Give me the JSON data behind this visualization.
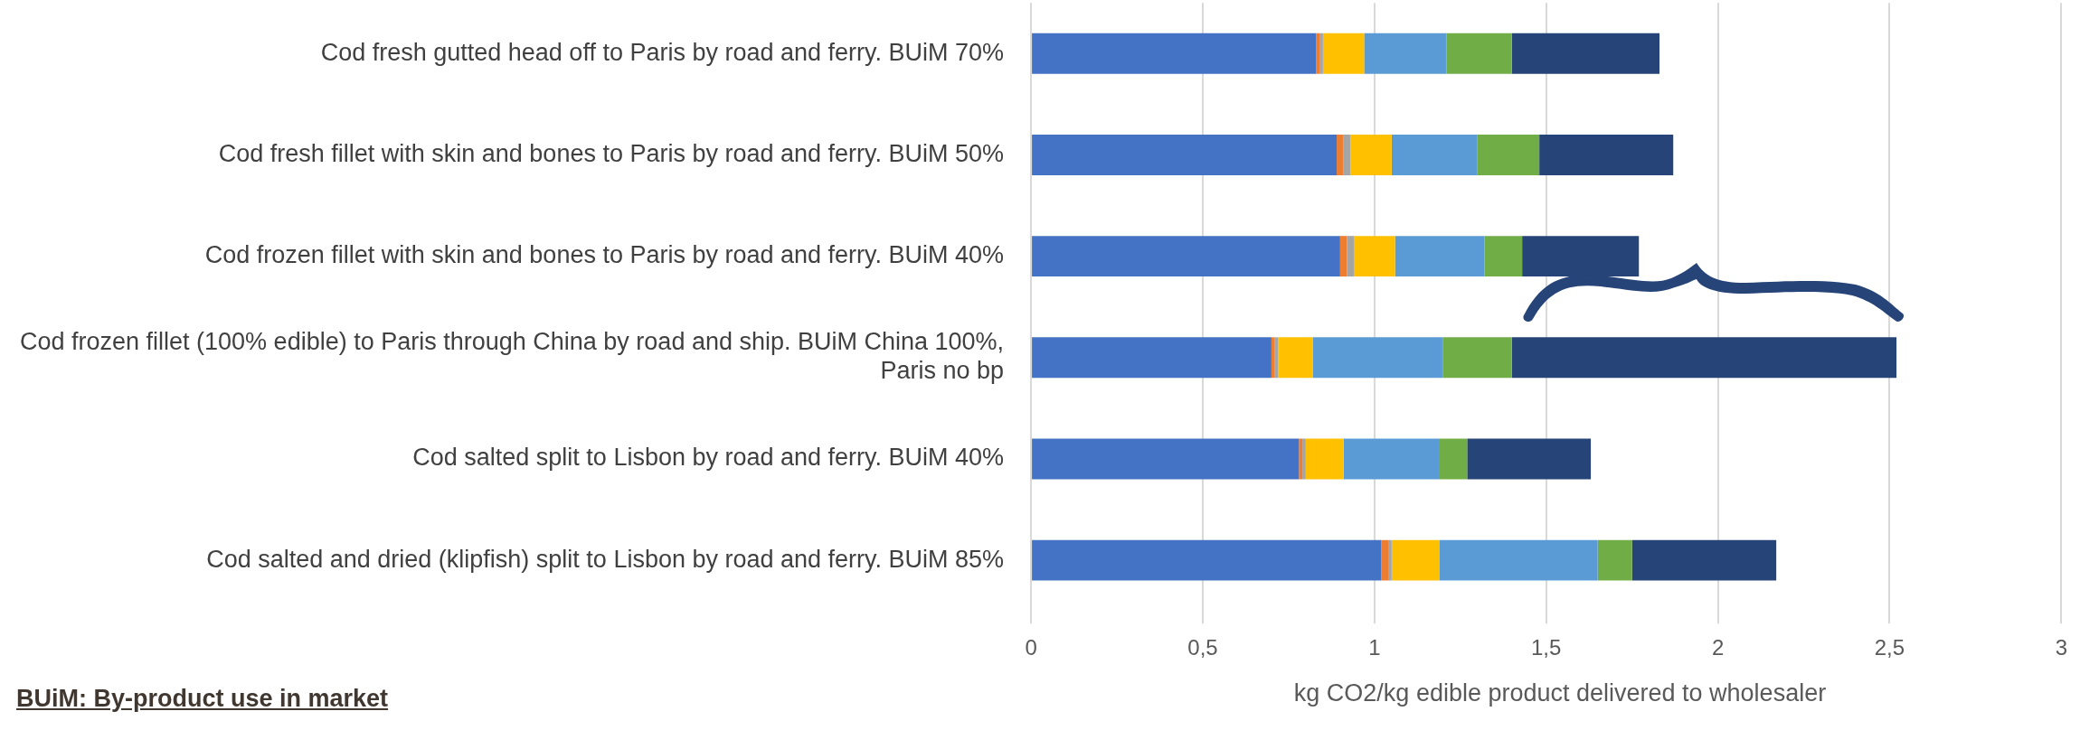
{
  "chart_data": {
    "type": "bar",
    "orientation": "horizontal",
    "stacked": true,
    "categories": [
      "Cod fresh gutted head off to Paris by road and ferry. BUiM 70%",
      "Cod fresh fillet with skin and bones to Paris by road and ferry. BUiM 50%",
      "Cod frozen fillet with skin and bones to Paris by road and ferry. BUiM 40%",
      "Cod frozen fillet (100% edible) to Paris through China by road and ship. BUiM China 100%, Paris no bp",
      "Cod salted split to Lisbon by road and ferry. BUiM 40%",
      "Cod salted and dried (klipfish) split to Lisbon by road and ferry. BUiM 85%"
    ],
    "series": [
      {
        "color": "#4472c4",
        "values": [
          0.83,
          0.89,
          0.9,
          0.7,
          0.78,
          1.02
        ]
      },
      {
        "color": "#ed7d31",
        "values": [
          0.01,
          0.02,
          0.02,
          0.01,
          0.01,
          0.02
        ]
      },
      {
        "color": "#a5a5a5",
        "values": [
          0.01,
          0.02,
          0.02,
          0.01,
          0.01,
          0.01
        ]
      },
      {
        "color": "#ffc000",
        "values": [
          0.12,
          0.12,
          0.12,
          0.1,
          0.11,
          0.14
        ]
      },
      {
        "color": "#5b9bd5",
        "values": [
          0.24,
          0.25,
          0.26,
          0.38,
          0.28,
          0.46
        ]
      },
      {
        "color": "#70ad47",
        "values": [
          0.19,
          0.18,
          0.11,
          0.2,
          0.08,
          0.1
        ]
      },
      {
        "color": "#264478",
        "values": [
          0.43,
          0.39,
          0.34,
          1.12,
          0.36,
          0.42
        ]
      }
    ],
    "xlim": [
      0,
      3
    ],
    "xticks": [
      0,
      {
        "value": 0.5,
        "label": "0,5"
      },
      1,
      {
        "value": 1.5,
        "label": "1,5"
      },
      2,
      {
        "value": 2.5,
        "label": "2,5"
      },
      3
    ],
    "xlabel": "kg CO2/kg edible product delivered to wholesaler",
    "annotations": [
      "BUiM: By-product use in market"
    ],
    "grid": "x"
  }
}
